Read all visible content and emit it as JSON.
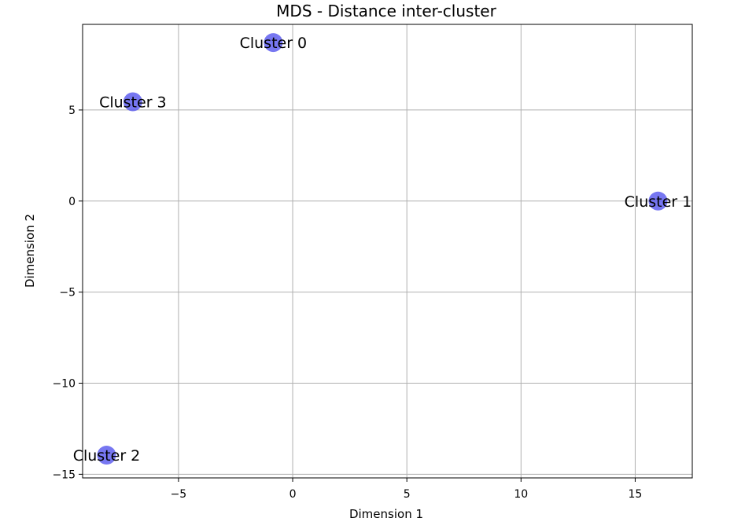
{
  "chart_data": {
    "type": "scatter",
    "title": "MDS - Distance inter-cluster",
    "xlabel": "Dimension 1",
    "ylabel": "Dimension 2",
    "xlim": [
      -9.2,
      17.5
    ],
    "ylim": [
      -15.2,
      9.7
    ],
    "grid": true,
    "xticks": [
      -5,
      0,
      5,
      10,
      15
    ],
    "yticks": [
      -15,
      -10,
      -5,
      0,
      5
    ],
    "xtick_labels": [
      "−5",
      "0",
      "5",
      "10",
      "15"
    ],
    "ytick_labels": [
      "−15",
      "−10",
      "−5",
      "0",
      "5"
    ],
    "point_color": "#5555ee",
    "point_alpha": 0.8,
    "points": [
      {
        "label": "Cluster 0",
        "x": -0.85,
        "y": 8.7
      },
      {
        "label": "Cluster 1",
        "x": 16.0,
        "y": 0.0
      },
      {
        "label": "Cluster 2",
        "x": -8.15,
        "y": -13.95
      },
      {
        "label": "Cluster 3",
        "x": -7.0,
        "y": 5.45
      }
    ]
  }
}
